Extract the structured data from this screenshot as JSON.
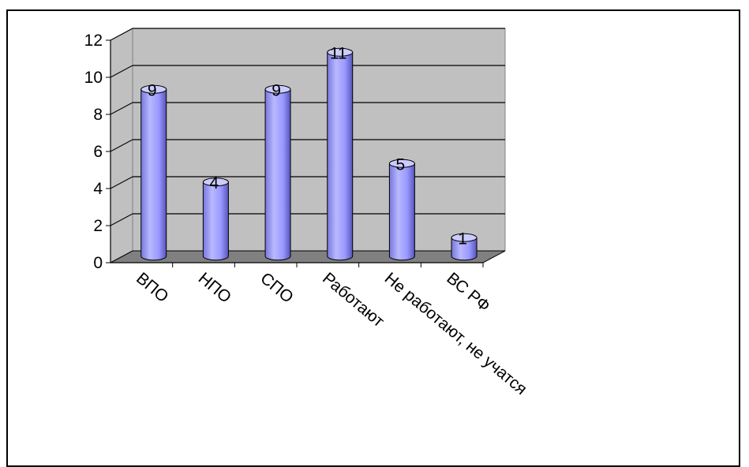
{
  "chart_data": {
    "type": "bar",
    "title": "",
    "xlabel": "",
    "ylabel": "",
    "categories": [
      "ВПО",
      "НПО",
      "СПО",
      "Работают",
      "Не работают, не учатся",
      "ВС РФ"
    ],
    "values": [
      9,
      4,
      9,
      11,
      5,
      1
    ],
    "data_labels": [
      "9",
      "4",
      "9",
      "11",
      "5",
      "1"
    ],
    "ylim": [
      0,
      12
    ],
    "yticks": [
      "0",
      "2",
      "4",
      "6",
      "8",
      "10",
      "12"
    ],
    "grid": true,
    "legend": "none",
    "style": "3d-cylinder",
    "colors": {
      "bar": "#9999ff",
      "bar_dark": "#6666cc",
      "bar_light": "#ccccff",
      "wall": "#c0c0c0",
      "floor": "#808080",
      "grid": "#000000"
    }
  }
}
